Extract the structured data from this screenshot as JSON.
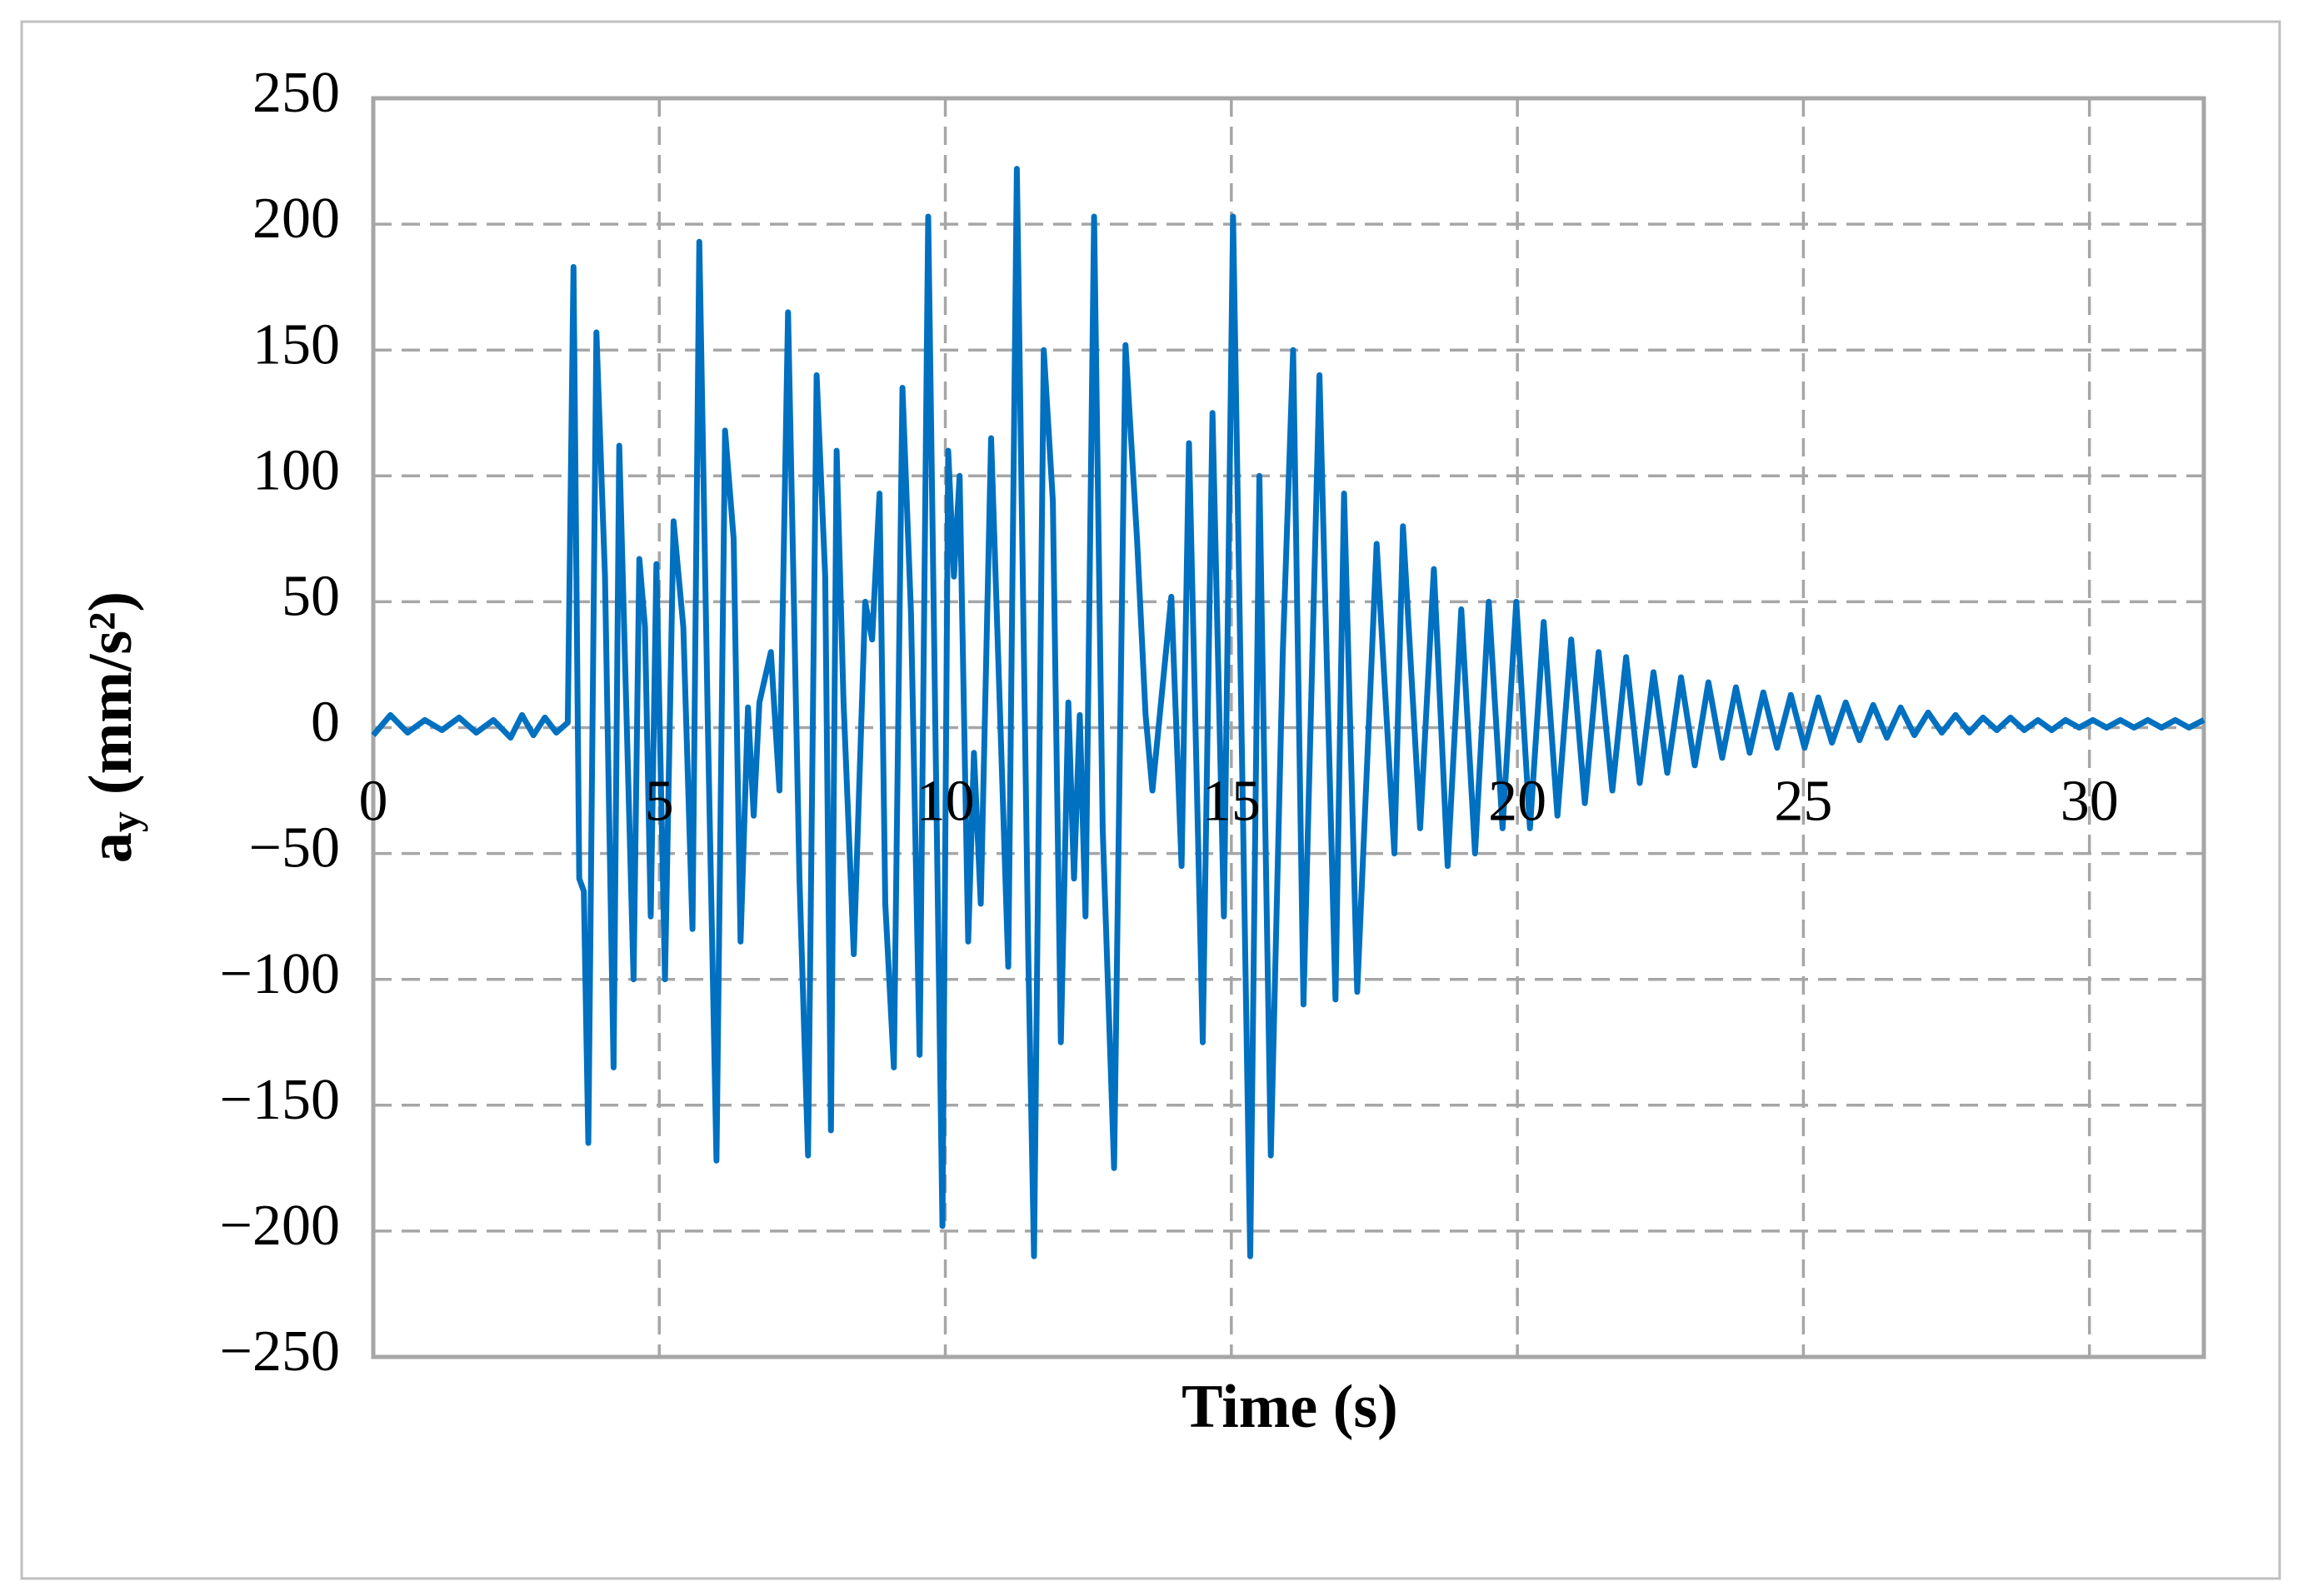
{
  "chart_data": {
    "type": "line",
    "xlabel": "Time (s)",
    "ylabel": {
      "symbol": "a",
      "subscript": "y",
      "unit": "(mm/s²)"
    },
    "xlim": [
      0,
      32
    ],
    "xticks": [
      0,
      5,
      10,
      15,
      20,
      25,
      30
    ],
    "ylim": [
      -250,
      250
    ],
    "yticks": [
      {
        "value": -250,
        "label": "−250"
      },
      {
        "value": -200,
        "label": "−200"
      },
      {
        "value": -150,
        "label": "−150"
      },
      {
        "value": -100,
        "label": "−100"
      },
      {
        "value": -50,
        "label": "−50"
      },
      0,
      50,
      100,
      150,
      200,
      250
    ],
    "grid": true,
    "x": [
      0,
      0.3,
      0.6,
      0.9,
      1.2,
      1.5,
      1.8,
      2.1,
      2.4,
      2.6,
      2.8,
      3.0,
      3.2,
      3.4,
      3.5,
      3.6,
      3.68,
      3.76,
      3.9,
      4.05,
      4.2,
      4.3,
      4.42,
      4.55,
      4.65,
      4.75,
      4.85,
      4.95,
      5.1,
      5.25,
      5.42,
      5.58,
      5.7,
      5.85,
      6.0,
      6.15,
      6.3,
      6.42,
      6.55,
      6.65,
      6.75,
      6.95,
      7.1,
      7.25,
      7.45,
      7.6,
      7.75,
      7.9,
      8.0,
      8.1,
      8.22,
      8.4,
      8.6,
      8.72,
      8.85,
      8.95,
      9.1,
      9.25,
      9.4,
      9.55,
      9.7,
      9.85,
      9.95,
      10.05,
      10.15,
      10.25,
      10.4,
      10.5,
      10.62,
      10.8,
      10.95,
      11.1,
      11.25,
      11.45,
      11.55,
      11.72,
      11.88,
      12.02,
      12.15,
      12.25,
      12.35,
      12.45,
      12.6,
      12.75,
      12.95,
      13.15,
      13.35,
      13.5,
      13.62,
      13.95,
      14.13,
      14.26,
      14.5,
      14.67,
      14.87,
      15.03,
      15.33,
      15.49,
      15.69,
      15.9,
      16.08,
      16.26,
      16.54,
      16.82,
      16.97,
      17.2,
      17.54,
      17.85,
      18.0,
      18.3,
      18.54,
      18.78,
      19.02,
      19.26,
      19.5,
      19.74,
      19.98,
      20.22,
      20.46,
      20.7,
      20.94,
      21.18,
      21.42,
      21.66,
      21.9,
      22.14,
      22.38,
      22.62,
      22.86,
      23.1,
      23.34,
      23.58,
      23.82,
      24.06,
      24.3,
      24.54,
      24.78,
      25.02,
      25.26,
      25.5,
      25.74,
      25.98,
      26.22,
      26.46,
      26.7,
      26.94,
      27.18,
      27.42,
      27.66,
      27.9,
      28.14,
      28.38,
      28.62,
      28.86,
      29.1,
      29.34,
      29.58,
      29.82,
      30.06,
      30.3,
      30.54,
      30.78,
      31.02,
      31.26,
      31.5,
      31.74,
      32
    ],
    "series": [
      {
        "color": "#0070c0",
        "values": [
          -3,
          5,
          -2,
          3,
          -1,
          4,
          -2,
          3,
          -4,
          5,
          -3,
          4,
          -2,
          2,
          183,
          -60,
          -65,
          -165,
          157,
          60,
          -135,
          112,
          10,
          -100,
          67,
          40,
          -75,
          65,
          -100,
          82,
          40,
          -80,
          193,
          0,
          -172,
          118,
          75,
          -85,
          8,
          -35,
          10,
          30,
          -25,
          165,
          -60,
          -170,
          140,
          60,
          -160,
          110,
          10,
          -90,
          50,
          35,
          93,
          -70,
          -135,
          135,
          45,
          -130,
          203,
          -40,
          -198,
          110,
          60,
          100,
          -85,
          -10,
          -70,
          115,
          10,
          -95,
          222,
          -90,
          -210,
          150,
          90,
          -125,
          10,
          -60,
          5,
          -75,
          203,
          -40,
          -175,
          152,
          75,
          5,
          -25,
          52,
          -55,
          113,
          -125,
          125,
          -75,
          203,
          -210,
          100,
          -170,
          30,
          150,
          -110,
          140,
          -108,
          93,
          -105,
          73,
          -50,
          80,
          -40,
          63,
          -55,
          47,
          -50,
          50,
          -40,
          50,
          -40,
          42,
          -35,
          35,
          -30,
          30,
          -25,
          28,
          -22,
          22,
          -18,
          20,
          -15,
          18,
          -12,
          16,
          -10,
          14,
          -8,
          13,
          -8,
          12,
          -6,
          10,
          -5,
          9,
          -4,
          8,
          -3,
          6,
          -2,
          5,
          -2,
          4,
          -1,
          4,
          -1,
          3,
          -1,
          3,
          0,
          3,
          0,
          3,
          0,
          3,
          0,
          3,
          0,
          3
        ]
      }
    ]
  }
}
